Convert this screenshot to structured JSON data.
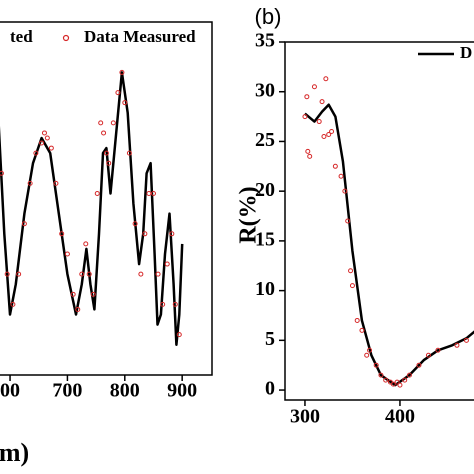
{
  "chart_data": [
    {
      "type": "line",
      "x_label": "m)",
      "xlim": [
        579,
        952
      ],
      "ylim": [
        0,
        35
      ],
      "xticks": [
        {
          "value": 600,
          "label": "00"
        },
        700,
        800,
        900
      ],
      "series": [
        {
          "name": "ted",
          "color": "#000000",
          "style": "line",
          "x": [
            580,
            590,
            600,
            610,
            625,
            640,
            655,
            670,
            685,
            700,
            715,
            725,
            733,
            740,
            747,
            755,
            762,
            768,
            775,
            785,
            795,
            805,
            815,
            825,
            832,
            838,
            845,
            852,
            857,
            863,
            870,
            878,
            885,
            890,
            895,
            900
          ],
          "values": [
            25,
            14,
            6,
            9,
            16,
            21,
            23.5,
            22,
            16,
            10,
            6,
            9,
            12.5,
            9,
            6.5,
            14,
            22,
            22.5,
            18,
            24,
            30,
            26,
            17,
            11,
            14,
            20,
            21,
            12,
            5,
            6,
            12,
            16,
            9,
            3,
            6,
            13
          ]
        },
        {
          "name": "Data Measured",
          "color": "#d62728",
          "style": "markers",
          "x": [
            585,
            595,
            605,
            615,
            625,
            635,
            645,
            655,
            660,
            665,
            672,
            680,
            690,
            700,
            710,
            718,
            725,
            732,
            738,
            745,
            752,
            758,
            763,
            768,
            772,
            780,
            788,
            795,
            800,
            808,
            818,
            828,
            835,
            842,
            850,
            858,
            866,
            874,
            882,
            888,
            895
          ],
          "values": [
            20,
            10,
            7,
            10,
            15,
            19,
            22,
            23,
            24,
            23.5,
            22.5,
            19,
            14,
            12,
            8,
            6.5,
            10,
            13,
            10,
            8,
            18,
            25,
            24,
            22,
            21,
            25,
            28,
            30,
            27,
            22,
            15,
            10,
            14,
            18,
            18,
            10,
            7,
            11,
            14,
            7,
            4
          ]
        }
      ]
    },
    {
      "type": "line",
      "panel_label": "(b)",
      "y_label": "R(%)",
      "xlim": [
        279,
        479
      ],
      "ylim": [
        -1,
        35
      ],
      "xticks": [
        300,
        400
      ],
      "yticks": [
        0,
        5,
        10,
        15,
        20,
        25,
        30,
        35
      ],
      "series": [
        {
          "name": "D",
          "color": "#000000",
          "style": "line",
          "x": [
            300,
            310,
            318,
            325,
            332,
            340,
            350,
            360,
            370,
            380,
            395,
            410,
            425,
            440,
            455,
            470,
            480
          ],
          "values": [
            27.8,
            27,
            28,
            28.7,
            27.5,
            23,
            14,
            7,
            3.5,
            1.5,
            0.5,
            1.5,
            3,
            4,
            4.5,
            5.2,
            6
          ]
        },
        {
          "color": "#d62728",
          "style": "markers",
          "x": [
            300,
            302,
            303,
            305,
            310,
            315,
            318,
            320,
            322,
            325,
            328,
            332,
            338,
            342,
            345,
            348,
            350,
            355,
            360,
            365,
            368,
            375,
            380,
            385,
            390,
            393,
            397,
            400,
            405,
            410,
            420,
            430,
            440,
            460,
            470
          ],
          "values": [
            27.5,
            29.5,
            24,
            23.5,
            30.5,
            27,
            29,
            25.5,
            31.3,
            25.7,
            26,
            22.5,
            21.5,
            20,
            17,
            12,
            10.5,
            7,
            6,
            3.5,
            4,
            2.5,
            1.5,
            1,
            0.8,
            0.6,
            0.8,
            0.5,
            1,
            1.5,
            2.5,
            3.5,
            4,
            4.5,
            5
          ]
        }
      ]
    }
  ]
}
